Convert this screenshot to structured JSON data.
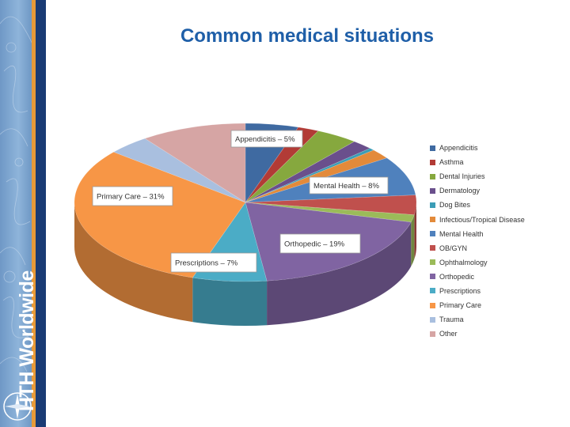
{
  "slide": {
    "title": "Common medical situations",
    "logo_text": "HTH Worldwide"
  },
  "icons": {
    "logo": "compass-icon"
  },
  "colors": {
    "title": "#1f5fa8",
    "sidebar_blue": "#6f98c6",
    "sidebar_dark": "#1a3b74",
    "sidebar_stripe": "#e79a38"
  },
  "chart_data": {
    "type": "pie",
    "style": "3d",
    "legend_position": "right",
    "categories": [
      "Appendicitis",
      "Asthma",
      "Dental Injuries",
      "Dermatology",
      "Dog Bites",
      "Infectious/Tropical Disease",
      "Mental Health",
      "OB/GYN",
      "Ophthalmology",
      "Orthopedic",
      "Prescriptions",
      "Primary Care",
      "Trauma",
      "Other"
    ],
    "values": [
      5,
      2,
      4,
      2,
      0.5,
      2,
      8,
      4,
      1.5,
      19,
      7,
      31,
      4,
      10
    ],
    "colors": [
      "#3f6aa1",
      "#b23b36",
      "#86a83e",
      "#6a4f8c",
      "#3b9db6",
      "#e38a3a",
      "#4f81bd",
      "#c0504d",
      "#9bbb59",
      "#8064a2",
      "#4bacc6",
      "#f79646",
      "#a9bfdf",
      "#d6a5a4"
    ],
    "data_labels": [
      {
        "category": "Appendicitis",
        "text": "Appendicitis – 5%"
      },
      {
        "category": "Mental Health",
        "text": "Mental Health – 8%"
      },
      {
        "category": "Orthopedic",
        "text": "Orthopedic – 19%"
      },
      {
        "category": "Prescriptions",
        "text": "Prescriptions  –  7%"
      },
      {
        "category": "Primary Care",
        "text": "Primary Care – 31%"
      }
    ]
  }
}
